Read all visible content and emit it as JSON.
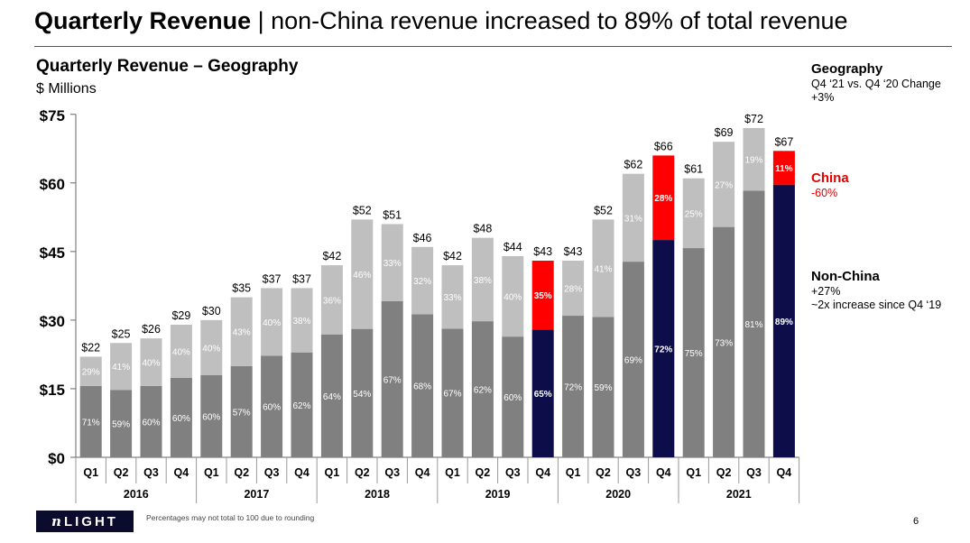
{
  "slide": {
    "title_bold": "Quarterly Revenue",
    "title_rest": " | non-China revenue increased to 89% of total revenue",
    "page_number": "6",
    "footnote": "Percentages may not total to 100 due to rounding",
    "logo_text": "LIGHT",
    "logo_letter": "n"
  },
  "sidebar": {
    "geography": {
      "heading": "Geography",
      "line1": "Q4 ‘21 vs. Q4 ‘20 Change",
      "line2": "+3%"
    },
    "china": {
      "heading": "China",
      "line1": "-60%"
    },
    "non_china": {
      "heading": "Non-China",
      "line1": "+27%",
      "line2": "~2x increase since Q4 ‘19"
    }
  },
  "chart_data": {
    "type": "bar",
    "stacked": true,
    "title": "Quarterly Revenue – Geography",
    "subtitle": "$ Millions",
    "ylim": [
      0,
      75
    ],
    "y_ticks": [
      "$0",
      "$15",
      "$30",
      "$45",
      "$60",
      "$75"
    ],
    "categories": [
      "Q1",
      "Q2",
      "Q3",
      "Q4",
      "Q1",
      "Q2",
      "Q3",
      "Q4",
      "Q1",
      "Q2",
      "Q3",
      "Q4",
      "Q1",
      "Q2",
      "Q3",
      "Q4",
      "Q1",
      "Q2",
      "Q3",
      "Q4",
      "Q1",
      "Q2",
      "Q3",
      "Q4"
    ],
    "years": [
      "2016",
      "2017",
      "2018",
      "2019",
      "2020",
      "2021"
    ],
    "totals": [
      22,
      25,
      26,
      29,
      30,
      35,
      37,
      37,
      42,
      52,
      51,
      46,
      42,
      48,
      44,
      43,
      43,
      52,
      62,
      66,
      61,
      69,
      72,
      67
    ],
    "total_labels": [
      "$22",
      "$25",
      "$26",
      "$29",
      "$30",
      "$35",
      "$37",
      "$37",
      "$42",
      "$52",
      "$51",
      "$46",
      "$42",
      "$48",
      "$44",
      "$43",
      "$43",
      "$52",
      "$62",
      "$66",
      "$61",
      "$69",
      "$72",
      "$67"
    ],
    "bottom_pct": [
      "71%",
      "59%",
      "60%",
      "60%",
      "60%",
      "57%",
      "60%",
      "62%",
      "64%",
      "54%",
      "67%",
      "68%",
      "67%",
      "62%",
      "60%",
      "65%",
      "72%",
      "59%",
      "69%",
      "72%",
      "75%",
      "73%",
      "81%",
      "89%"
    ],
    "top_pct": [
      "29%",
      "41%",
      "40%",
      "40%",
      "40%",
      "43%",
      "40%",
      "38%",
      "36%",
      "46%",
      "33%",
      "32%",
      "33%",
      "38%",
      "40%",
      "35%",
      "28%",
      "41%",
      "31%",
      "28%",
      "25%",
      "27%",
      "19%",
      "11%"
    ],
    "highlight_q4_indices": [
      15,
      19,
      23
    ],
    "colors": {
      "bottom": "#808080",
      "top": "#bfbfbf",
      "highlight_bottom": "#0d0d4a",
      "highlight_top": "#ff0000"
    }
  }
}
